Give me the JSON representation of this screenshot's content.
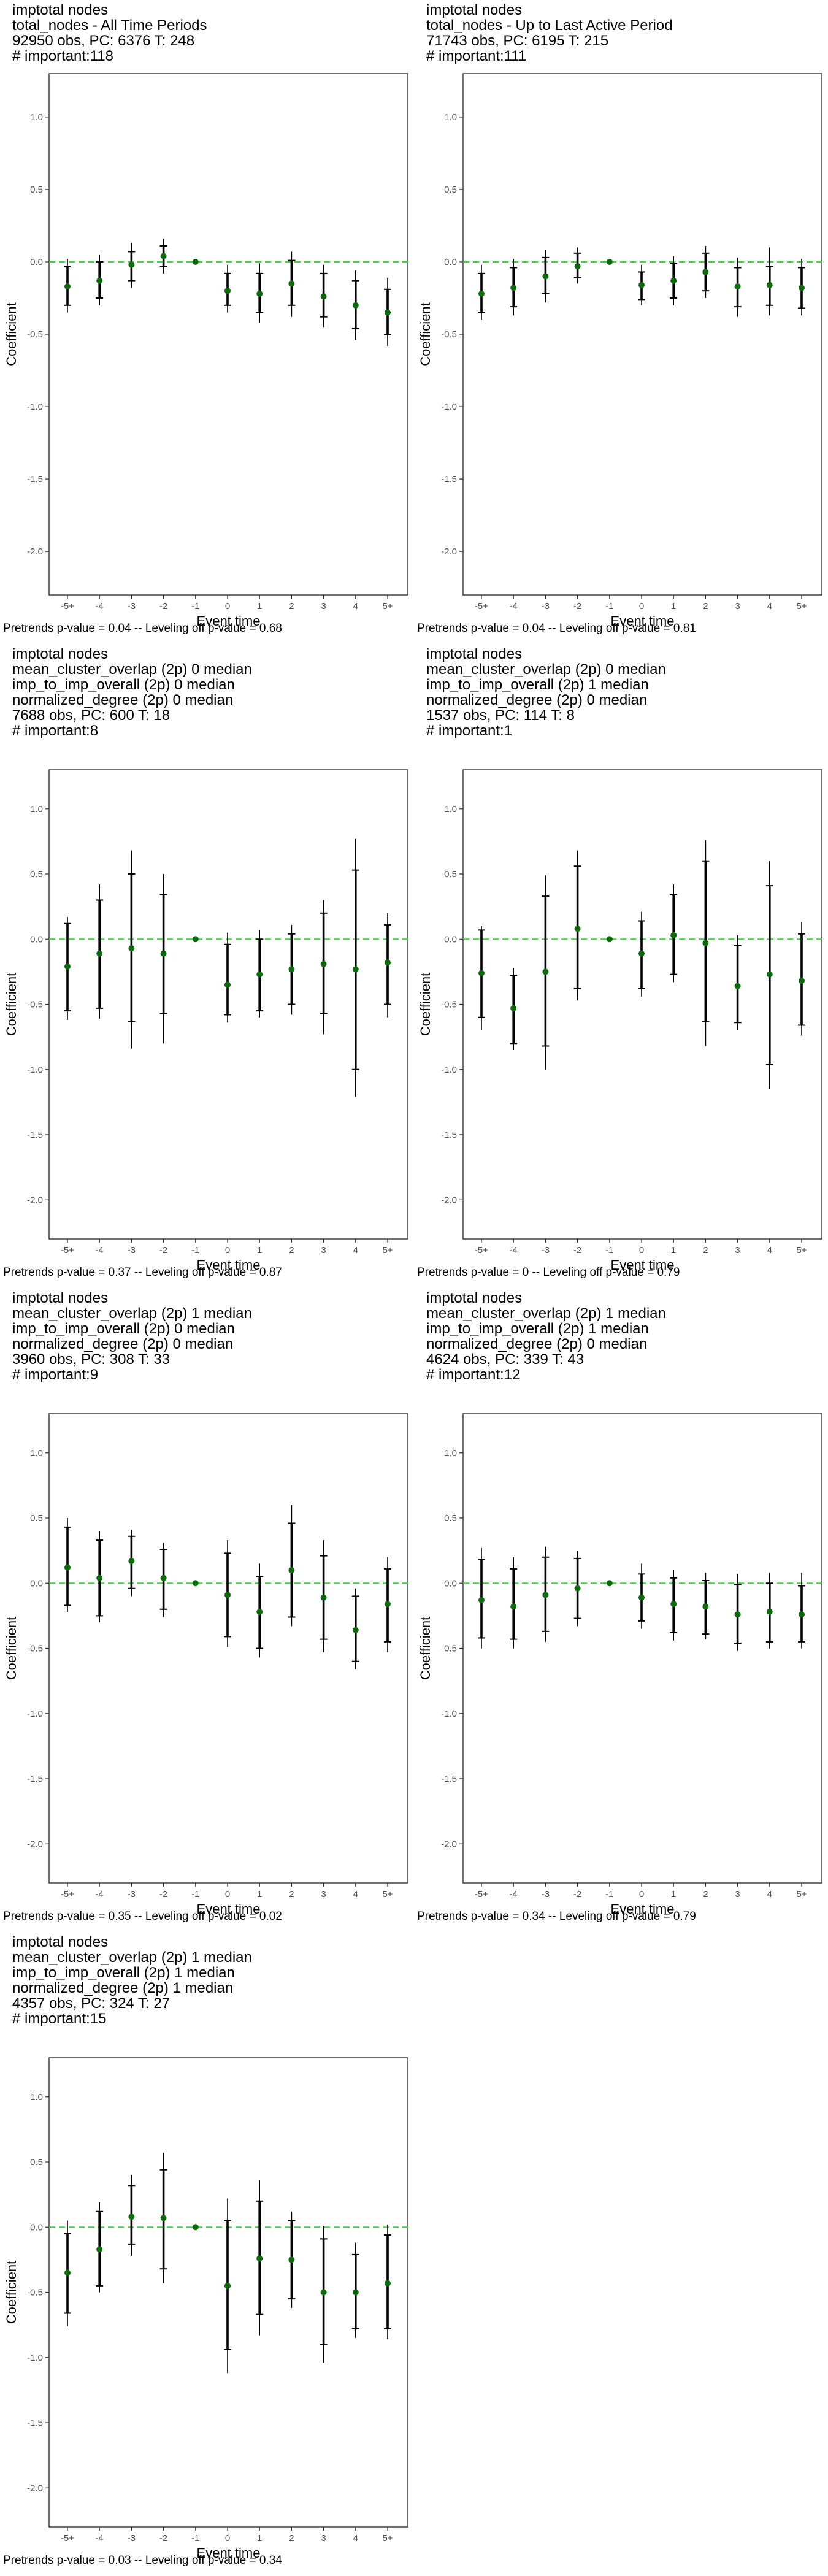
{
  "axis": {
    "xlabel": "Event time",
    "ylabel": "Coefficient",
    "x_ticks": [
      "-5+",
      "-4",
      "-3",
      "-2",
      "-1",
      "0",
      "1",
      "2",
      "3",
      "4",
      "5+"
    ],
    "y_ticks": [
      "1.0",
      "0.5",
      "0.0",
      "-0.5",
      "-1.0",
      "-1.5",
      "-2.0"
    ],
    "ylim": [
      -2.3,
      1.3
    ]
  },
  "colors": {
    "point": "#0b6b0b",
    "zero_line": "#33dd33",
    "bar": "#000000",
    "frame": "#333333"
  },
  "chart_data": [
    {
      "type": "errorbar",
      "header": [
        "imptotal nodes",
        "total_nodes - All Time Periods",
        "92950 obs, PC: 6376 T: 248",
        "# important:118"
      ],
      "footer": "Pretrends p-value = 0.04 -- Leveling off p-value = 0.68",
      "x": [
        "-5+",
        "-4",
        "-3",
        "-2",
        "-1",
        "0",
        "1",
        "2",
        "3",
        "4",
        "5+"
      ],
      "estimate": [
        -0.17,
        -0.13,
        -0.02,
        0.04,
        0.0,
        -0.2,
        -0.22,
        -0.15,
        -0.24,
        -0.3,
        -0.35
      ],
      "ci_outer": [
        [
          -0.35,
          0.02
        ],
        [
          -0.3,
          0.05
        ],
        [
          -0.18,
          0.13
        ],
        [
          -0.08,
          0.16
        ],
        [
          0.0,
          0.0
        ],
        [
          -0.35,
          -0.02
        ],
        [
          -0.42,
          -0.01
        ],
        [
          -0.38,
          0.07
        ],
        [
          -0.45,
          -0.02
        ],
        [
          -0.54,
          -0.06
        ],
        [
          -0.58,
          -0.11
        ]
      ],
      "ci_inner": [
        [
          -0.3,
          -0.03
        ],
        [
          -0.25,
          0.0
        ],
        [
          -0.13,
          0.07
        ],
        [
          -0.03,
          0.11
        ],
        [
          0.0,
          0.0
        ],
        [
          -0.3,
          -0.08
        ],
        [
          -0.35,
          -0.08
        ],
        [
          -0.3,
          0.01
        ],
        [
          -0.38,
          -0.08
        ],
        [
          -0.46,
          -0.13
        ],
        [
          -0.5,
          -0.19
        ]
      ]
    },
    {
      "type": "errorbar",
      "header": [
        "imptotal nodes",
        "total_nodes - Up to Last Active Period",
        "71743 obs, PC: 6195 T: 215",
        "# important:111"
      ],
      "footer": "Pretrends p-value = 0.04 -- Leveling off p-value = 0.81",
      "x": [
        "-5+",
        "-4",
        "-3",
        "-2",
        "-1",
        "0",
        "1",
        "2",
        "3",
        "4",
        "5+"
      ],
      "estimate": [
        -0.22,
        -0.18,
        -0.1,
        -0.03,
        0.0,
        -0.16,
        -0.13,
        -0.07,
        -0.17,
        -0.16,
        -0.18
      ],
      "ci_outer": [
        [
          -0.4,
          -0.02
        ],
        [
          -0.37,
          0.02
        ],
        [
          -0.28,
          0.08
        ],
        [
          -0.15,
          0.1
        ],
        [
          0.0,
          0.0
        ],
        [
          -0.3,
          -0.02
        ],
        [
          -0.3,
          0.04
        ],
        [
          -0.25,
          0.11
        ],
        [
          -0.38,
          0.03
        ],
        [
          -0.37,
          0.1
        ],
        [
          -0.37,
          0.02
        ]
      ],
      "ci_inner": [
        [
          -0.35,
          -0.08
        ],
        [
          -0.31,
          -0.04
        ],
        [
          -0.22,
          0.03
        ],
        [
          -0.11,
          0.06
        ],
        [
          0.0,
          0.0
        ],
        [
          -0.26,
          -0.07
        ],
        [
          -0.25,
          -0.01
        ],
        [
          -0.2,
          0.06
        ],
        [
          -0.31,
          -0.04
        ],
        [
          -0.3,
          -0.03
        ],
        [
          -0.32,
          -0.04
        ]
      ]
    },
    {
      "type": "errorbar",
      "header": [
        "imptotal nodes",
        "mean_cluster_overlap (2p) 0 median",
        "imp_to_imp_overall (2p) 0 median",
        "normalized_degree (2p) 0 median",
        "7688 obs, PC: 600 T: 18",
        "# important:8"
      ],
      "footer": "Pretrends p-value = 0.37 -- Leveling off p-value = 0.87",
      "x": [
        "-5+",
        "-4",
        "-3",
        "-2",
        "-1",
        "0",
        "1",
        "2",
        "3",
        "4",
        "5+"
      ],
      "estimate": [
        -0.21,
        -0.11,
        -0.07,
        -0.11,
        0.0,
        -0.35,
        -0.27,
        -0.23,
        -0.19,
        -0.23,
        -0.18
      ],
      "ci_outer": [
        [
          -0.62,
          0.17
        ],
        [
          -0.61,
          0.42
        ],
        [
          -0.84,
          0.68
        ],
        [
          -0.8,
          0.5
        ],
        [
          0.0,
          0.0
        ],
        [
          -0.64,
          0.05
        ],
        [
          -0.6,
          0.07
        ],
        [
          -0.58,
          0.11
        ],
        [
          -0.73,
          0.3
        ],
        [
          -1.21,
          0.77
        ],
        [
          -0.6,
          0.2
        ]
      ],
      "ci_inner": [
        [
          -0.55,
          0.12
        ],
        [
          -0.53,
          0.3
        ],
        [
          -0.63,
          0.5
        ],
        [
          -0.57,
          0.34
        ],
        [
          0.0,
          0.0
        ],
        [
          -0.58,
          -0.04
        ],
        [
          -0.55,
          0.0
        ],
        [
          -0.5,
          0.04
        ],
        [
          -0.57,
          0.2
        ],
        [
          -1.0,
          0.53
        ],
        [
          -0.5,
          0.11
        ]
      ]
    },
    {
      "type": "errorbar",
      "header": [
        "imptotal nodes",
        "mean_cluster_overlap (2p) 0 median",
        "imp_to_imp_overall (2p) 1 median",
        "normalized_degree (2p) 0 median",
        "1537 obs, PC: 114 T: 8",
        "# important:1"
      ],
      "footer": "Pretrends p-value = 0 -- Leveling off p-value = 0.79",
      "x": [
        "-5+",
        "-4",
        "-3",
        "-2",
        "-1",
        "0",
        "1",
        "2",
        "3",
        "4",
        "5+"
      ],
      "estimate": [
        -0.26,
        -0.53,
        -0.25,
        0.08,
        0.0,
        -0.11,
        0.03,
        -0.03,
        -0.36,
        -0.27,
        -0.32
      ],
      "ci_outer": [
        [
          -0.7,
          0.1
        ],
        [
          -0.85,
          -0.22
        ],
        [
          -1.0,
          0.49
        ],
        [
          -0.47,
          0.68
        ],
        [
          0.0,
          0.0
        ],
        [
          -0.44,
          0.21
        ],
        [
          -0.33,
          0.42
        ],
        [
          -0.82,
          0.76
        ],
        [
          -0.7,
          0.03
        ],
        [
          -1.15,
          0.6
        ],
        [
          -0.74,
          0.13
        ]
      ],
      "ci_inner": [
        [
          -0.6,
          0.07
        ],
        [
          -0.8,
          -0.28
        ],
        [
          -0.82,
          0.33
        ],
        [
          -0.38,
          0.56
        ],
        [
          0.0,
          0.0
        ],
        [
          -0.38,
          0.14
        ],
        [
          -0.27,
          0.34
        ],
        [
          -0.63,
          0.6
        ],
        [
          -0.64,
          -0.05
        ],
        [
          -0.96,
          0.41
        ],
        [
          -0.66,
          0.04
        ]
      ]
    },
    {
      "type": "errorbar",
      "header": [
        "imptotal nodes",
        "mean_cluster_overlap (2p) 1 median",
        "imp_to_imp_overall (2p) 0 median",
        "normalized_degree (2p) 0 median",
        "3960 obs, PC: 308 T: 33",
        "# important:9"
      ],
      "footer": "Pretrends p-value = 0.35 -- Leveling off p-value = 0.02",
      "x": [
        "-5+",
        "-4",
        "-3",
        "-2",
        "-1",
        "0",
        "1",
        "2",
        "3",
        "4",
        "5+"
      ],
      "estimate": [
        0.12,
        0.04,
        0.17,
        0.04,
        0.0,
        -0.09,
        -0.22,
        0.1,
        -0.11,
        -0.36,
        -0.16
      ],
      "ci_outer": [
        [
          -0.22,
          0.5
        ],
        [
          -0.3,
          0.4
        ],
        [
          -0.1,
          0.41
        ],
        [
          -0.26,
          0.31
        ],
        [
          0.0,
          0.0
        ],
        [
          -0.49,
          0.33
        ],
        [
          -0.57,
          0.15
        ],
        [
          -0.33,
          0.6
        ],
        [
          -0.53,
          0.33
        ],
        [
          -0.66,
          -0.04
        ],
        [
          -0.53,
          0.2
        ]
      ],
      "ci_inner": [
        [
          -0.17,
          0.43
        ],
        [
          -0.25,
          0.33
        ],
        [
          -0.04,
          0.36
        ],
        [
          -0.2,
          0.26
        ],
        [
          0.0,
          0.0
        ],
        [
          -0.41,
          0.23
        ],
        [
          -0.5,
          0.05
        ],
        [
          -0.26,
          0.46
        ],
        [
          -0.43,
          0.21
        ],
        [
          -0.6,
          -0.1
        ],
        [
          -0.45,
          0.11
        ]
      ]
    },
    {
      "type": "errorbar",
      "header": [
        "imptotal nodes",
        "mean_cluster_overlap (2p) 1 median",
        "imp_to_imp_overall (2p) 1 median",
        "normalized_degree (2p) 0 median",
        "4624 obs, PC: 339 T: 43",
        "# important:12"
      ],
      "footer": "Pretrends p-value = 0.34 -- Leveling off p-value = 0.79",
      "x": [
        "-5+",
        "-4",
        "-3",
        "-2",
        "-1",
        "0",
        "1",
        "2",
        "3",
        "4",
        "5+"
      ],
      "estimate": [
        -0.13,
        -0.18,
        -0.09,
        -0.04,
        0.0,
        -0.11,
        -0.16,
        -0.18,
        -0.24,
        -0.22,
        -0.24
      ],
      "ci_outer": [
        [
          -0.5,
          0.27
        ],
        [
          -0.5,
          0.2
        ],
        [
          -0.45,
          0.28
        ],
        [
          -0.33,
          0.25
        ],
        [
          0.0,
          0.0
        ],
        [
          -0.35,
          0.15
        ],
        [
          -0.44,
          0.1
        ],
        [
          -0.43,
          0.08
        ],
        [
          -0.52,
          0.07
        ],
        [
          -0.5,
          0.08
        ],
        [
          -0.5,
          0.08
        ]
      ],
      "ci_inner": [
        [
          -0.42,
          0.18
        ],
        [
          -0.43,
          0.11
        ],
        [
          -0.37,
          0.2
        ],
        [
          -0.27,
          0.19
        ],
        [
          0.0,
          0.0
        ],
        [
          -0.29,
          0.07
        ],
        [
          -0.38,
          0.04
        ],
        [
          -0.39,
          0.02
        ],
        [
          -0.46,
          -0.01
        ],
        [
          -0.45,
          0.0
        ],
        [
          -0.45,
          -0.02
        ]
      ]
    },
    {
      "type": "errorbar",
      "header": [
        "imptotal nodes",
        "mean_cluster_overlap (2p) 1 median",
        "imp_to_imp_overall (2p) 1 median",
        "normalized_degree (2p) 1 median",
        "4357 obs, PC: 324 T: 27",
        "# important:15"
      ],
      "footer": "Pretrends p-value = 0.03 -- Leveling off p-value = 0.34",
      "x": [
        "-5+",
        "-4",
        "-3",
        "-2",
        "-1",
        "0",
        "1",
        "2",
        "3",
        "4",
        "5+"
      ],
      "estimate": [
        -0.35,
        -0.17,
        0.08,
        0.07,
        0.0,
        -0.45,
        -0.24,
        -0.25,
        -0.5,
        -0.5,
        -0.43
      ],
      "ci_outer": [
        [
          -0.76,
          0.05
        ],
        [
          -0.5,
          0.19
        ],
        [
          -0.22,
          0.4
        ],
        [
          -0.43,
          0.57
        ],
        [
          0.0,
          0.0
        ],
        [
          -1.12,
          0.22
        ],
        [
          -0.83,
          0.36
        ],
        [
          -0.62,
          0.12
        ],
        [
          -1.04,
          0.01
        ],
        [
          -0.85,
          -0.12
        ],
        [
          -0.86,
          0.02
        ]
      ],
      "ci_inner": [
        [
          -0.66,
          -0.05
        ],
        [
          -0.45,
          0.12
        ],
        [
          -0.13,
          0.32
        ],
        [
          -0.32,
          0.44
        ],
        [
          0.0,
          0.0
        ],
        [
          -0.94,
          0.05
        ],
        [
          -0.67,
          0.2
        ],
        [
          -0.55,
          0.05
        ],
        [
          -0.9,
          -0.09
        ],
        [
          -0.78,
          -0.21
        ],
        [
          -0.78,
          -0.06
        ]
      ]
    }
  ]
}
